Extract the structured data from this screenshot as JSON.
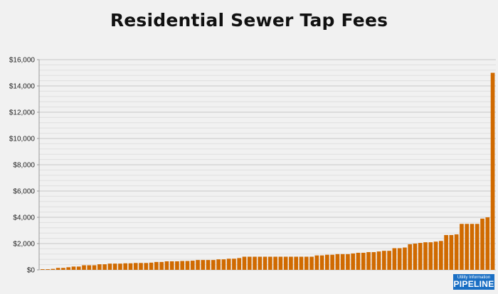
{
  "chart_data": {
    "type": "bar",
    "title": "Residential Sewer Tap Fees",
    "xlabel": "",
    "ylabel": "",
    "ylim": [
      0,
      16000
    ],
    "yticks": [
      0,
      2000,
      4000,
      6000,
      8000,
      10000,
      12000,
      14000,
      16000
    ],
    "ytick_labels": [
      "$0",
      "$2,000",
      "$4,000",
      "$6,000",
      "$8,000",
      "$10,000",
      "$12,000",
      "$14,000",
      "$16,000"
    ],
    "grid": true,
    "bar_color": "#d06a00",
    "values": [
      50,
      50,
      75,
      150,
      150,
      200,
      250,
      250,
      350,
      350,
      350,
      425,
      425,
      475,
      475,
      475,
      500,
      500,
      525,
      525,
      525,
      550,
      600,
      600,
      650,
      650,
      650,
      675,
      675,
      700,
      750,
      750,
      750,
      750,
      800,
      800,
      850,
      850,
      900,
      1000,
      1000,
      1000,
      1000,
      1000,
      1000,
      1000,
      1000,
      1000,
      1000,
      1000,
      1000,
      1000,
      1000,
      1100,
      1100,
      1150,
      1150,
      1200,
      1200,
      1200,
      1250,
      1300,
      1300,
      1350,
      1350,
      1400,
      1450,
      1450,
      1650,
      1650,
      1700,
      1950,
      2000,
      2050,
      2100,
      2100,
      2150,
      2200,
      2650,
      2650,
      2700,
      3500,
      3500,
      3500,
      3500,
      3900,
      4000,
      15000
    ]
  },
  "logo": {
    "line1": "Utility Information",
    "line2": "PIPELINE"
  }
}
